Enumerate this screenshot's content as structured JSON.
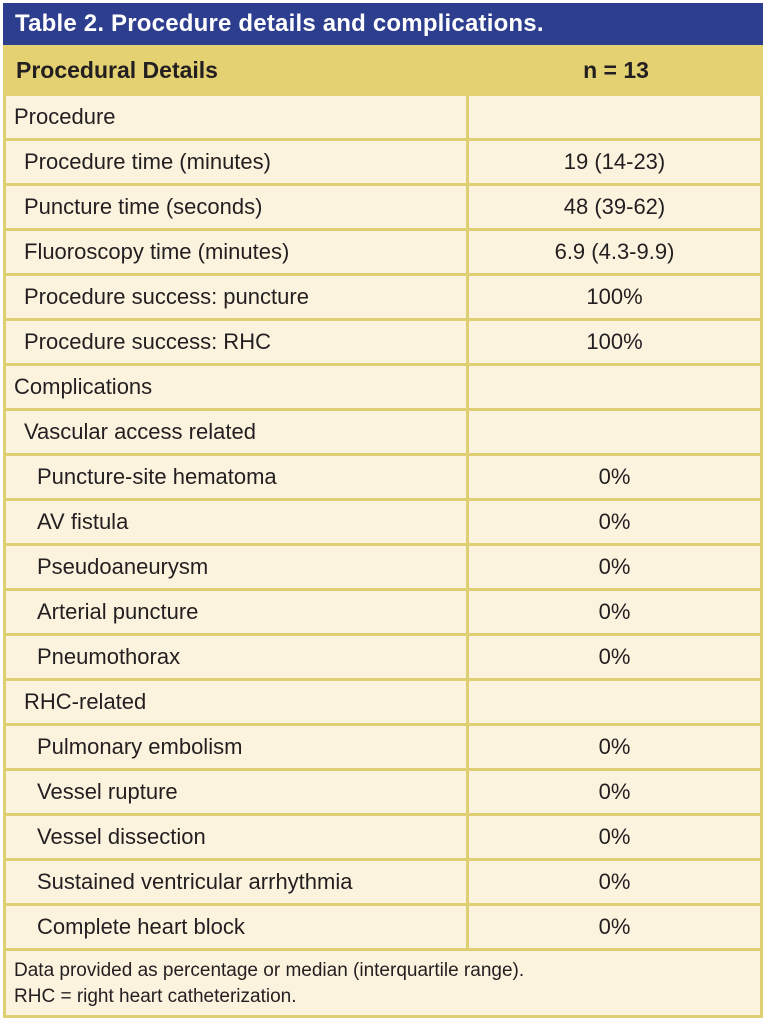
{
  "table": {
    "title": "Table 2. Procedure details and complications.",
    "header": {
      "label": "Procedural Details",
      "value": "n = 13"
    },
    "rows": [
      {
        "label": "Procedure",
        "value": "",
        "indent": 0
      },
      {
        "label": "Procedure time (minutes)",
        "value": "19 (14-23)",
        "indent": 1
      },
      {
        "label": "Puncture time (seconds)",
        "value": "48 (39-62)",
        "indent": 1
      },
      {
        "label": "Fluoroscopy time (minutes)",
        "value": "6.9 (4.3-9.9)",
        "indent": 1
      },
      {
        "label": "Procedure success: puncture",
        "value": "100%",
        "indent": 1
      },
      {
        "label": "Procedure success: RHC",
        "value": "100%",
        "indent": 1
      },
      {
        "label": "Complications",
        "value": "",
        "indent": 0
      },
      {
        "label": "Vascular access related",
        "value": "",
        "indent": 1
      },
      {
        "label": "Puncture-site hematoma",
        "value": "0%",
        "indent": 2
      },
      {
        "label": "AV fistula",
        "value": "0%",
        "indent": 2
      },
      {
        "label": "Pseudoaneurysm",
        "value": "0%",
        "indent": 2
      },
      {
        "label": "Arterial puncture",
        "value": "0%",
        "indent": 2
      },
      {
        "label": "Pneumothorax",
        "value": "0%",
        "indent": 2
      },
      {
        "label": "RHC-related",
        "value": "",
        "indent": 1
      },
      {
        "label": "Pulmonary embolism",
        "value": "0%",
        "indent": 2
      },
      {
        "label": "Vessel rupture",
        "value": "0%",
        "indent": 2
      },
      {
        "label": "Vessel dissection",
        "value": "0%",
        "indent": 2
      },
      {
        "label": "Sustained ventricular arrhythmia",
        "value": "0%",
        "indent": 2
      },
      {
        "label": "Complete heart block",
        "value": "0%",
        "indent": 2
      }
    ],
    "footnotes": [
      "Data provided as percentage or median (interquartile range).",
      "RHC = right heart catheterization."
    ],
    "colors": {
      "title_bar": "#2d3e8f",
      "title_text": "#ffffff",
      "header_bg": "#e3d172",
      "body_bg": "#fcf3df",
      "border": "#decf73",
      "text": "#231f20"
    }
  }
}
